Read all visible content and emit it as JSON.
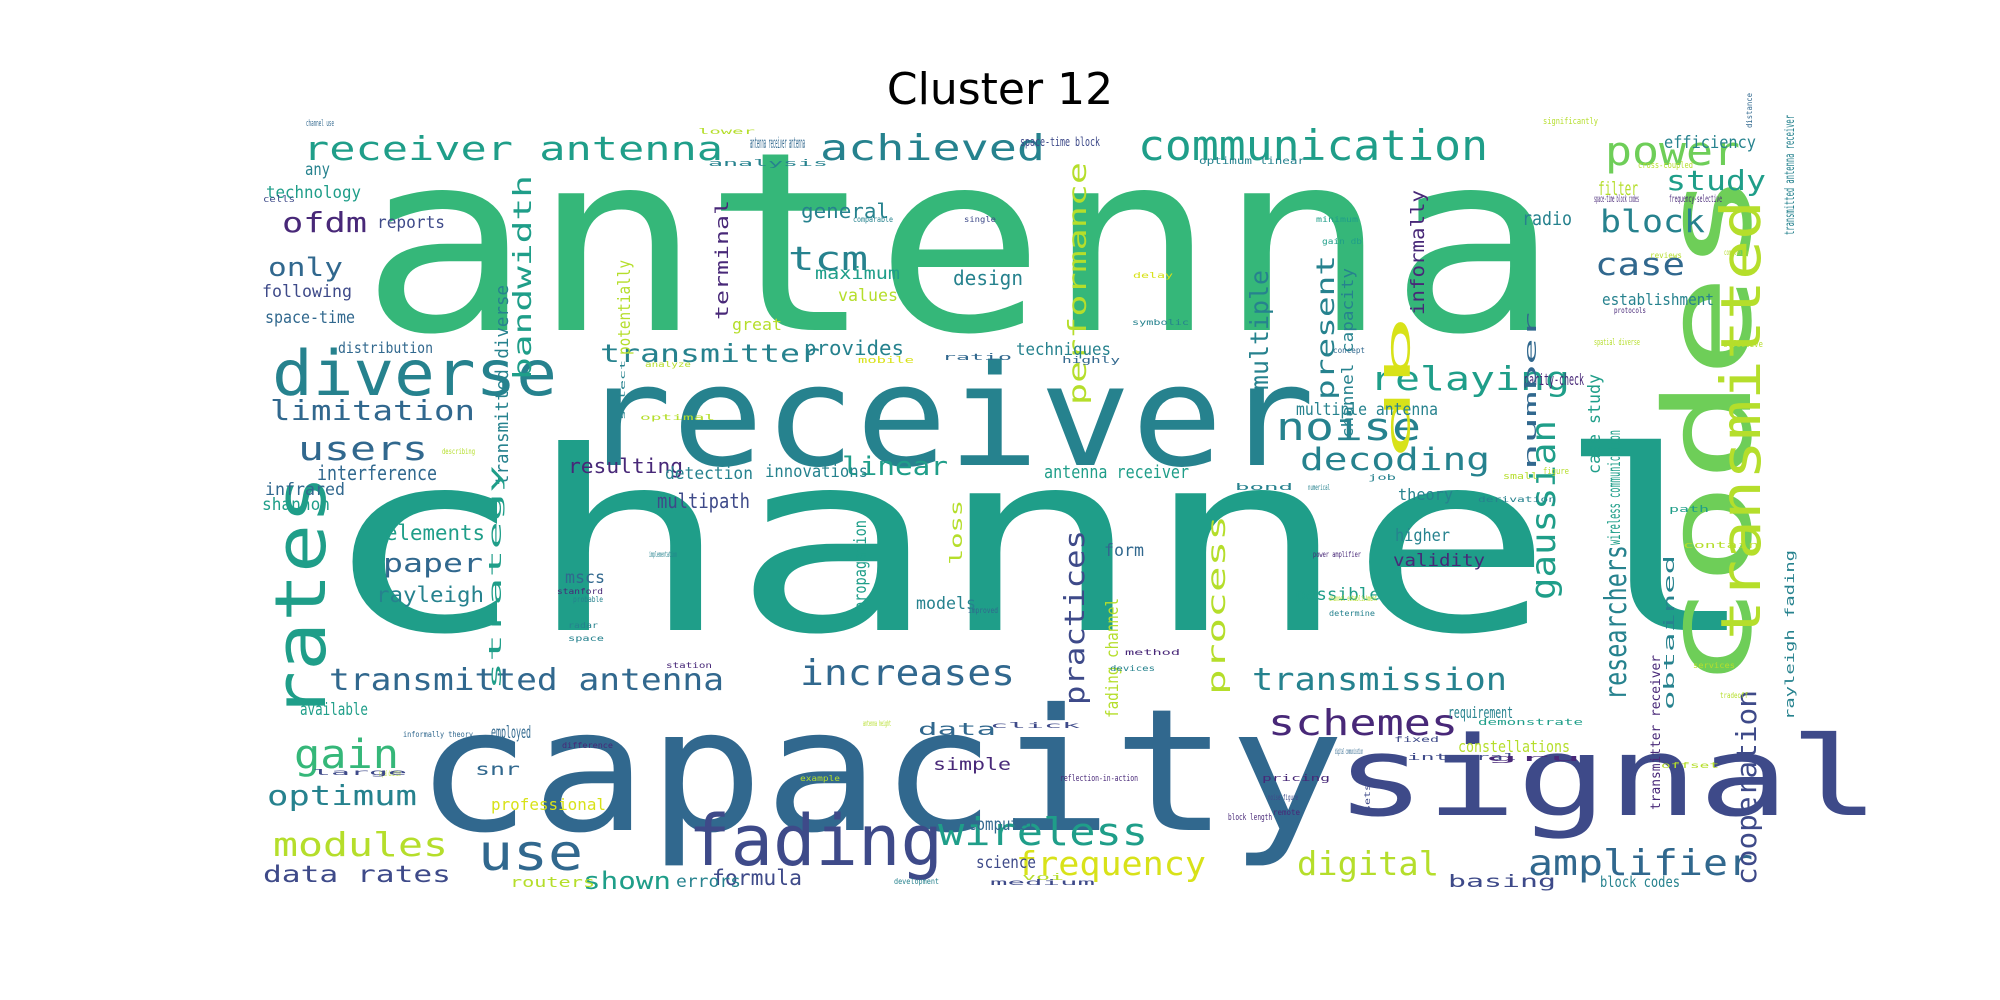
{
  "title": "Cluster 12",
  "palette": {
    "purple": "#482878",
    "indigo": "#3e4a89",
    "blue": "#31688e",
    "teal": "#26828e",
    "aqua": "#1f9e89",
    "green": "#35b779",
    "lime": "#6ece58",
    "yellowgreen": "#b5de2b",
    "yellow": "#d8e219"
  },
  "words": [
    "antenna",
    "channel",
    "capacity",
    "receiver",
    "codes",
    "signal",
    "transmitted",
    "diverse",
    "rates",
    "fading",
    "communication",
    "receiver antenna",
    "achieved",
    "power",
    "use",
    "wireless",
    "noise",
    "relaying",
    "decoding",
    "increases",
    "schemes",
    "transmitted antenna",
    "transmission",
    "amplifier",
    "modules",
    "gain",
    "frequency",
    "digital",
    "optimum",
    "users",
    "limitation",
    "case",
    "block",
    "study",
    "ofdm",
    "only",
    "tcm",
    "db",
    "gaussian",
    "researchers",
    "cooperation",
    "paper",
    "practices",
    "performance",
    "multiple",
    "process",
    "bandwidth",
    "linear",
    "transmitter",
    "present",
    "data rates",
    "shown",
    "formula",
    "elements",
    "rayleigh",
    "interference",
    "infrared",
    "shannon",
    "any",
    "technology",
    "following",
    "space-time",
    "distribution",
    "general",
    "maximum",
    "values",
    "provides",
    "design",
    "terminal",
    "informally",
    "radio",
    "filter",
    "establishment",
    "efficiency",
    "reports",
    "potentially",
    "great",
    "techniques",
    "multiple antenna",
    "resulting",
    "detection",
    "innovations",
    "antenna receiver",
    "multipath",
    "propagation",
    "mscs",
    "models",
    "loss",
    "fading channel",
    "form",
    "higher",
    "validity",
    "theory",
    "possible",
    "channel capacity",
    "case study",
    "parity-check",
    "number",
    "wireless communication",
    "available",
    "employed",
    "snr",
    "data",
    "simple",
    "computer",
    "science",
    "errors",
    "routers",
    "professional",
    "constellations",
    "requirement",
    "basing",
    "block codes",
    "obtained",
    "transmitter receiver",
    "rayleigh fading",
    "transmitted antenna receiver",
    "transmitted diverse",
    "strategy",
    "antenna receiver antenna",
    "space-time block",
    "analysis",
    "optimum linear",
    "space-time block codes",
    "frequency-selective",
    "cross-coupled",
    "significantly",
    "distance",
    "channel use",
    "lower",
    "cells",
    "comparable",
    "single",
    "minimum",
    "delay",
    "gain db",
    "symbolic",
    "reviews",
    "complexity",
    "protocols",
    "ratio",
    "mobile",
    "spatial diverse",
    "effective",
    "concept",
    "highly",
    "analyze",
    "describing",
    "optimal",
    "select",
    "implementation",
    "bond",
    "numerical",
    "job",
    "small",
    "figure",
    "path",
    "contain",
    "power amplifier",
    "derivation",
    "channel establishment",
    "determine",
    "stanford",
    "probable",
    "radar",
    "space",
    "station",
    "improved",
    "method",
    "devices",
    "services",
    "tradeoff",
    "offset",
    "antenna height",
    "click",
    "demonstrate",
    "fixed",
    "digital communication",
    "integral",
    "gru",
    "informally theory",
    "signal detection",
    "difference",
    "large",
    "example",
    "reflection-in-action",
    "pricing",
    "block length",
    "noise figure",
    "remote",
    "sets",
    "voi",
    "development",
    "medium",
    "provides diverse"
  ]
}
